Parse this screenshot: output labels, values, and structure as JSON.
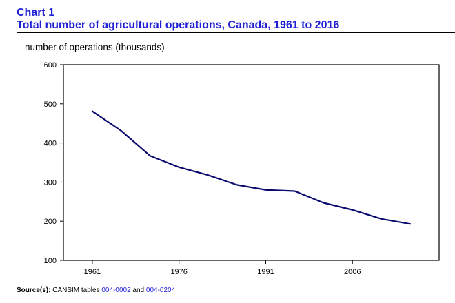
{
  "header": {
    "chart_label": "Chart 1",
    "title": "Total number of agricultural operations, Canada, 1961 to 2016"
  },
  "source": {
    "label": "Source(s):",
    "pre": "CANSIM tables",
    "link1": "004-0002",
    "mid": "and",
    "link2": "004-0204",
    "post": "."
  },
  "colors": {
    "title": "#1f1fd6",
    "line": "#0a0a6e"
  },
  "chart_data": {
    "type": "line",
    "title": "Total number of agricultural operations, Canada, 1961 to 2016",
    "ylabel": "number of operations (thousands)",
    "xlabel": "",
    "ylim": [
      100,
      600
    ],
    "xlim": [
      1956,
      2021
    ],
    "x_ticks": [
      1961,
      1976,
      1991,
      2006
    ],
    "y_ticks": [
      100,
      200,
      300,
      400,
      500,
      600
    ],
    "grid": false,
    "series": [
      {
        "x": [
          1961,
          1966,
          1971,
          1976,
          1981,
          1986,
          1991,
          1996,
          2001,
          2006,
          2011,
          2016
        ],
        "values": [
          481,
          431,
          367,
          338,
          318,
          293,
          280,
          277,
          247,
          229,
          206,
          193
        ]
      }
    ]
  }
}
